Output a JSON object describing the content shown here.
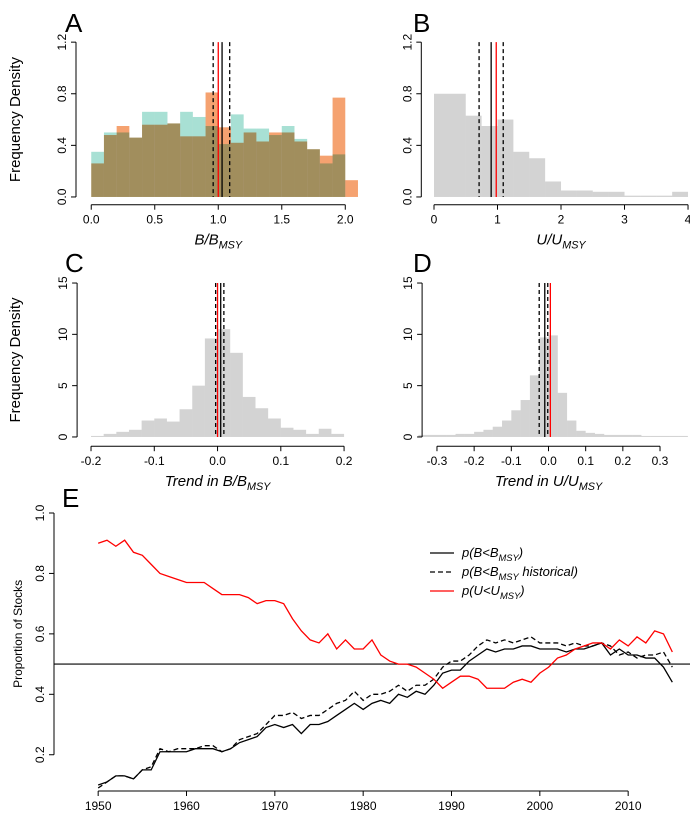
{
  "chart_data": [
    {
      "type": "histogram",
      "label": "A",
      "ylabel": "Frequency Density",
      "xlabel": [
        {
          "text": "B/B"
        },
        {
          "text": "MSY",
          "sub": true
        }
      ],
      "bins": [
        0,
        0.1,
        0.2,
        0.3,
        0.4,
        0.5,
        0.6,
        0.7,
        0.8,
        0.9,
        1.0,
        1.1,
        1.2,
        1.3,
        1.4,
        1.5,
        1.6,
        1.7,
        1.8,
        1.9,
        2.0,
        2.1
      ],
      "series": [
        {
          "color": "#a8e0d4",
          "values": [
            0.35,
            0.5,
            0.5,
            0.46,
            0.66,
            0.66,
            0.57,
            0.66,
            0.62,
            0.55,
            0.41,
            0.64,
            0.53,
            0.53,
            0.48,
            0.55,
            0.45,
            0.37,
            0.26,
            0.33,
            0
          ]
        },
        {
          "color": "#f5a270",
          "values": [
            0.26,
            0.48,
            0.55,
            0.46,
            0.56,
            0.56,
            0.57,
            0.47,
            0.47,
            0.81,
            0.54,
            0.42,
            0.5,
            0.43,
            0.5,
            0.5,
            0.43,
            0.37,
            0.32,
            0.77,
            0.13
          ]
        }
      ],
      "vlines": [
        {
          "value": 1.0,
          "color": "#ff0000",
          "dash": false
        },
        {
          "value": 1.03,
          "color": "#000000",
          "dash": false
        },
        {
          "value": 0.96,
          "color": "#000000",
          "dash": true
        },
        {
          "value": 1.09,
          "color": "#000000",
          "dash": true
        }
      ],
      "xlim": [
        -0.12,
        2.16
      ],
      "ylim": [
        -0.06,
        1.25
      ],
      "xticks": [
        {
          "value": 0,
          "label": "0.0"
        },
        0.5,
        {
          "value": 1,
          "label": "1.0"
        },
        1.5,
        {
          "value": 2,
          "label": "2.0"
        }
      ],
      "yticks": [
        {
          "value": 0,
          "label": "0.0"
        },
        0.4,
        0.8,
        1.2
      ]
    },
    {
      "type": "histogram",
      "label": "B",
      "xlabel": [
        {
          "text": "U/U"
        },
        {
          "text": "MSY",
          "sub": true
        }
      ],
      "bins": [
        0,
        0.25,
        0.5,
        0.75,
        1.0,
        1.25,
        1.5,
        1.75,
        2.0,
        2.25,
        2.5,
        2.75,
        3.0,
        3.25,
        3.5,
        3.75,
        4.0
      ],
      "series": [
        {
          "color": "#d3d3d3",
          "values": [
            0.8,
            0.8,
            0.63,
            0.55,
            0.6,
            0.35,
            0.3,
            0.12,
            0.05,
            0.05,
            0.04,
            0.04,
            0.01,
            0.01,
            0.01,
            0.04
          ]
        }
      ],
      "vlines": [
        {
          "value": 0.98,
          "color": "#ff0000",
          "dash": false
        },
        {
          "value": 0.9,
          "color": "#000000",
          "dash": false
        },
        {
          "value": 0.71,
          "color": "#000000",
          "dash": true
        },
        {
          "value": 1.09,
          "color": "#000000",
          "dash": true
        }
      ],
      "xlim": [
        -0.2,
        4.02
      ],
      "ylim": [
        -0.06,
        1.25
      ],
      "xticks": [
        0,
        1,
        2,
        3,
        4
      ],
      "yticks": [
        {
          "value": 0,
          "label": "0.0"
        },
        0.4,
        0.8,
        1.2
      ]
    },
    {
      "type": "histogram",
      "label": "C",
      "ylabel": "Frequency Density",
      "xlabel": [
        {
          "text": "Trend in B/B"
        },
        {
          "text": "MSY",
          "sub": true
        }
      ],
      "bins": [
        -0.2,
        -0.18,
        -0.16,
        -0.14,
        -0.12,
        -0.1,
        -0.08,
        -0.06,
        -0.04,
        -0.02,
        0,
        0.02,
        0.04,
        0.06,
        0.08,
        0.1,
        0.12,
        0.14,
        0.16,
        0.18,
        0.2
      ],
      "series": [
        {
          "color": "#d3d3d3",
          "values": [
            0.1,
            0.3,
            0.5,
            0.7,
            1.6,
            1.8,
            1.5,
            2.7,
            5.0,
            9.6,
            10.5,
            8.2,
            3.9,
            2.8,
            1.8,
            0.9,
            0.7,
            0.3,
            0.8,
            0.3
          ]
        }
      ],
      "vlines": [
        {
          "value": 0.0,
          "color": "#ff0000",
          "dash": false
        },
        {
          "value": 0.005,
          "color": "#000000",
          "dash": false
        },
        {
          "value": -0.003,
          "color": "#000000",
          "dash": true
        },
        {
          "value": 0.01,
          "color": "#000000",
          "dash": true
        }
      ],
      "xlim": [
        -0.222,
        0.21
      ],
      "ylim": [
        -0.9,
        15.5
      ],
      "xticks": [
        -0.2,
        -0.1,
        {
          "value": 0,
          "label": "0.0"
        },
        0.1,
        0.2
      ],
      "yticks": [
        0,
        5,
        10,
        15
      ]
    },
    {
      "type": "histogram",
      "label": "D",
      "xlabel": [
        {
          "text": "Trend in U/U"
        },
        {
          "text": "MSY",
          "sub": true
        }
      ],
      "bins": [
        -0.35,
        -0.325,
        -0.3,
        -0.275,
        -0.25,
        -0.225,
        -0.2,
        -0.175,
        -0.15,
        -0.125,
        -0.1,
        -0.075,
        -0.05,
        -0.025,
        0,
        0.025,
        0.05,
        0.075,
        0.1,
        0.125,
        0.15,
        0.175,
        0.2,
        0.225,
        0.25,
        0.275,
        0.3,
        0.325,
        0.35,
        0.375
      ],
      "series": [
        {
          "color": "#d3d3d3",
          "values": [
            0.2,
            0.2,
            0.2,
            0.2,
            0.3,
            0.3,
            0.5,
            0.7,
            1.0,
            1.6,
            2.6,
            3.6,
            6.0,
            9.7,
            9.9,
            4.3,
            1.6,
            0.6,
            0.4,
            0.3,
            0.2,
            0.2,
            0.2,
            0.2,
            0.1,
            0.1,
            0.1,
            0.1,
            0.1
          ]
        }
      ],
      "vlines": [
        {
          "value": 0.005,
          "color": "#ff0000",
          "dash": false
        },
        {
          "value": -0.01,
          "color": "#000000",
          "dash": false
        },
        {
          "value": -0.025,
          "color": "#000000",
          "dash": true
        },
        {
          "value": -0.002,
          "color": "#000000",
          "dash": true
        }
      ],
      "xlim": [
        -0.34,
        0.375
      ],
      "ylim": [
        -0.9,
        15.5
      ],
      "xticks": [
        -0.3,
        -0.2,
        -0.1,
        {
          "value": 0,
          "label": "0.0"
        },
        0.1,
        0.2,
        0.3
      ],
      "yticks": [
        0,
        5,
        10,
        15
      ]
    },
    {
      "type": "line",
      "label": "E",
      "ylabel": "Proportion of Stocks",
      "legend": "upper right",
      "x": [
        1950,
        1951,
        1952,
        1953,
        1954,
        1955,
        1956,
        1957,
        1958,
        1959,
        1960,
        1961,
        1962,
        1963,
        1964,
        1965,
        1966,
        1967,
        1968,
        1969,
        1970,
        1971,
        1972,
        1973,
        1974,
        1975,
        1976,
        1977,
        1978,
        1979,
        1980,
        1981,
        1982,
        1983,
        1984,
        1985,
        1986,
        1987,
        1988,
        1989,
        1990,
        1991,
        1992,
        1993,
        1994,
        1995,
        1996,
        1997,
        1998,
        1999,
        2000,
        2001,
        2002,
        2003,
        2004,
        2005,
        2006,
        2007,
        2008,
        2009,
        2010,
        2011,
        2012,
        2013,
        2014,
        2015
      ],
      "series": [
        {
          "name": [
            {
              "text": "p(B<B"
            },
            {
              "text": "MSY",
              "sub": true
            },
            {
              "text": ")"
            }
          ],
          "color": "#000000",
          "dash": false,
          "values": [
            0.1,
            0.11,
            0.13,
            0.13,
            0.12,
            0.15,
            0.15,
            0.21,
            0.21,
            0.21,
            0.21,
            0.22,
            0.22,
            0.22,
            0.21,
            0.22,
            0.24,
            0.25,
            0.26,
            0.29,
            0.3,
            0.29,
            0.3,
            0.27,
            0.3,
            0.3,
            0.31,
            0.33,
            0.35,
            0.37,
            0.35,
            0.37,
            0.38,
            0.37,
            0.4,
            0.39,
            0.41,
            0.4,
            0.43,
            0.47,
            0.48,
            0.48,
            0.51,
            0.53,
            0.55,
            0.54,
            0.55,
            0.55,
            0.56,
            0.56,
            0.55,
            0.55,
            0.55,
            0.54,
            0.55,
            0.55,
            0.56,
            0.57,
            0.53,
            0.55,
            0.53,
            0.53,
            0.52,
            0.52,
            0.49,
            0.44
          ]
        },
        {
          "name": [
            {
              "text": "p(B<B"
            },
            {
              "text": "MSY",
              "sub": true
            },
            {
              "text": " historical)"
            }
          ],
          "color": "#000000",
          "dash": true,
          "values": [
            0.09,
            0.11,
            0.13,
            0.13,
            0.12,
            0.15,
            0.16,
            0.22,
            0.21,
            0.22,
            0.22,
            0.22,
            0.23,
            0.23,
            0.21,
            0.22,
            0.25,
            0.26,
            0.27,
            0.3,
            0.33,
            0.33,
            0.34,
            0.32,
            0.33,
            0.33,
            0.35,
            0.37,
            0.38,
            0.41,
            0.38,
            0.4,
            0.4,
            0.41,
            0.43,
            0.41,
            0.43,
            0.43,
            0.45,
            0.49,
            0.51,
            0.51,
            0.53,
            0.56,
            0.58,
            0.57,
            0.58,
            0.57,
            0.58,
            0.59,
            0.57,
            0.57,
            0.57,
            0.56,
            0.57,
            0.56,
            0.56,
            0.57,
            0.56,
            0.53,
            0.54,
            0.52,
            0.53,
            0.53,
            0.54,
            0.49
          ]
        },
        {
          "name": [
            {
              "text": "p(U<U"
            },
            {
              "text": "MSY",
              "sub": true
            },
            {
              "text": ")"
            }
          ],
          "color": "#ff0000",
          "dash": false,
          "values": [
            0.9,
            0.91,
            0.89,
            0.91,
            0.87,
            0.86,
            0.83,
            0.8,
            0.79,
            0.78,
            0.77,
            0.77,
            0.77,
            0.75,
            0.73,
            0.73,
            0.73,
            0.72,
            0.7,
            0.71,
            0.71,
            0.7,
            0.65,
            0.61,
            0.58,
            0.57,
            0.6,
            0.55,
            0.58,
            0.55,
            0.55,
            0.58,
            0.53,
            0.51,
            0.5,
            0.5,
            0.49,
            0.47,
            0.45,
            0.42,
            0.44,
            0.46,
            0.46,
            0.45,
            0.42,
            0.42,
            0.42,
            0.44,
            0.45,
            0.44,
            0.47,
            0.49,
            0.52,
            0.53,
            0.55,
            0.56,
            0.57,
            0.57,
            0.55,
            0.58,
            0.56,
            0.59,
            0.57,
            0.61,
            0.6,
            0.54
          ]
        }
      ],
      "hline": 0.5,
      "xlim": [
        1945,
        2017
      ],
      "ylim": [
        0.08,
        1.0
      ],
      "xticks": [
        1950,
        1960,
        1970,
        1980,
        1990,
        2000,
        2010
      ],
      "yticks": [
        0.2,
        0.4,
        0.6,
        0.8,
        {
          "value": 1,
          "label": "1.0"
        }
      ]
    }
  ]
}
